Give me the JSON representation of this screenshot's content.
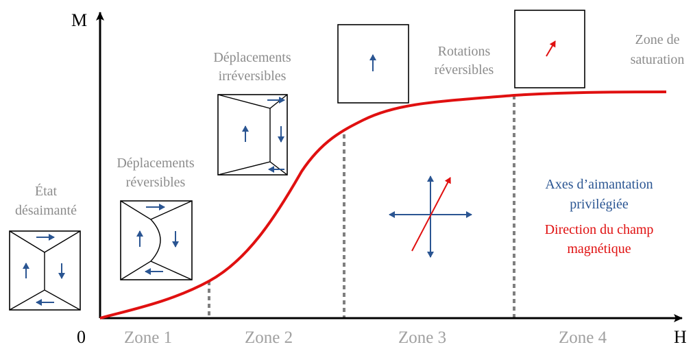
{
  "axes": {
    "y_label": "M",
    "x_label": "H",
    "origin_label": "0"
  },
  "zones": [
    {
      "label": "Zone 1"
    },
    {
      "label": "Zone 2"
    },
    {
      "label": "Zone 3"
    },
    {
      "label": "Zone 4"
    }
  ],
  "stages": {
    "etat_line1": "État",
    "etat_line2": "désaimanté",
    "rev_line1": "Déplacements",
    "rev_line2": "réversibles",
    "irrev_line1": "Déplacements",
    "irrev_line2": "irréversibles",
    "rot_line1": "Rotations",
    "rot_line2": "réversibles",
    "sat_line1": "Zone de",
    "sat_line2": "saturation"
  },
  "legend": {
    "axes_line1": "Axes d’aimantation",
    "axes_line2": "privilégiée",
    "field_line1": "Direction du champ",
    "field_line2": "magnétique"
  },
  "colors": {
    "curve": "#e01010",
    "domain_arrow": "#2a5592",
    "field_arrow": "#e01010",
    "zone_divider": "#7f7f7f"
  },
  "icons": [
    "axis-arrow-icon",
    "domain-arrow-icon",
    "field-arrow-icon"
  ]
}
